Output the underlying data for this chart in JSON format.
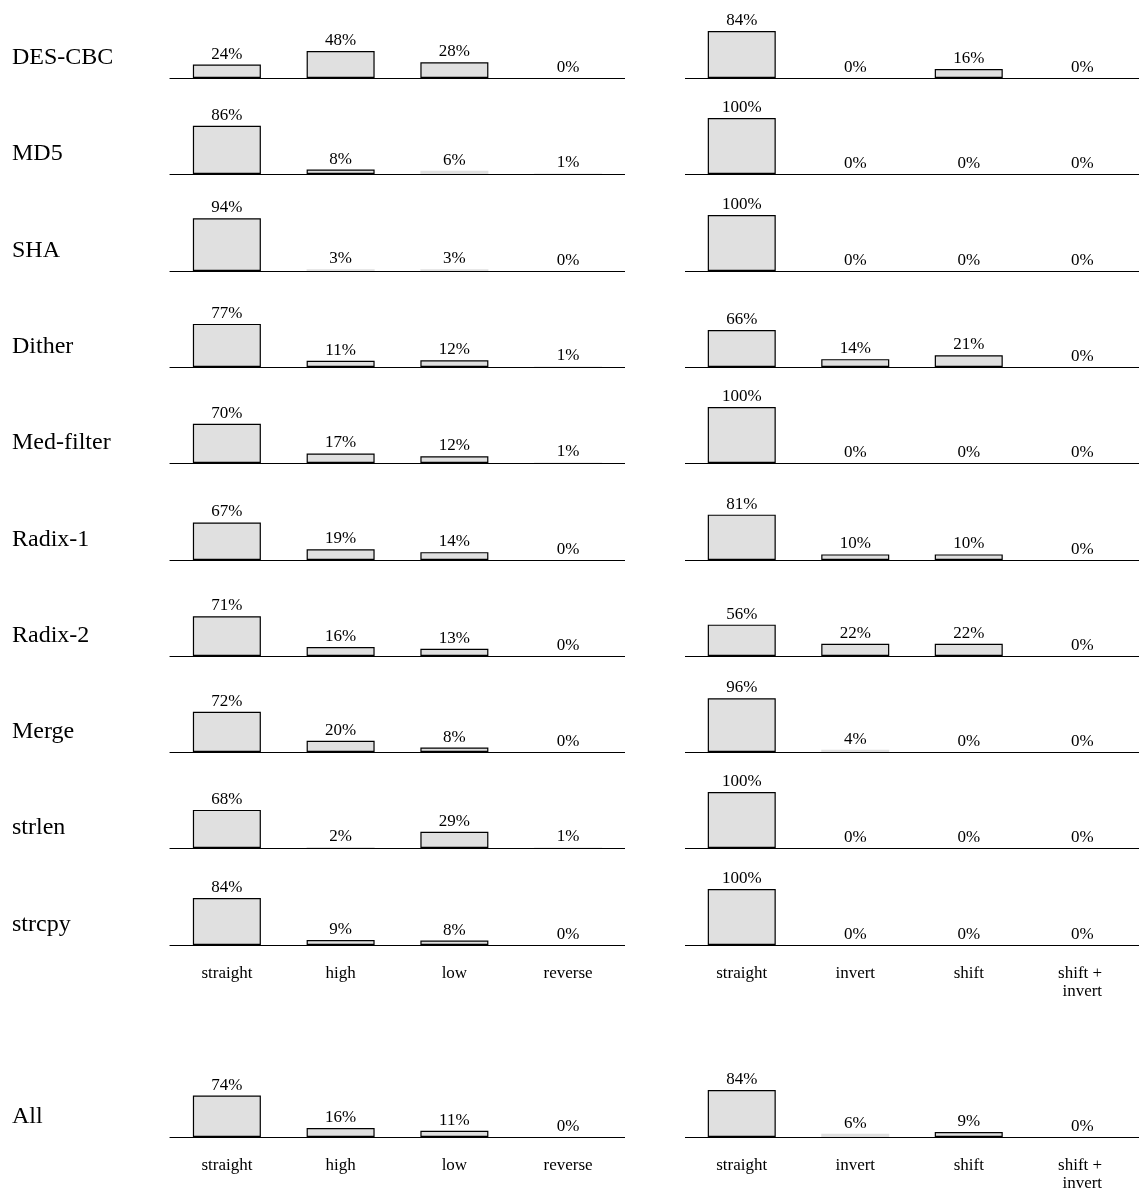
{
  "chart_data": [
    {
      "type": "bar",
      "ylabel": "DES-CBC",
      "categories": [
        "straight",
        "high",
        "low",
        "reverse"
      ],
      "values": [
        24,
        48,
        28,
        0
      ],
      "value_labels": [
        "24%",
        "48%",
        "28%",
        "0%"
      ],
      "color": "#e0e0e0",
      "tick_labels": false
    },
    {
      "type": "bar",
      "categories": [
        "straight",
        "invert",
        "shift",
        "shift + invert"
      ],
      "values": [
        84,
        0,
        16,
        0
      ],
      "value_labels": [
        "84%",
        "0%",
        "16%",
        "0%"
      ],
      "color": "#e0e0e0",
      "tick_labels": false
    },
    {
      "type": "bar",
      "ylabel": "MD5",
      "categories": [
        "straight",
        "high",
        "low",
        "reverse"
      ],
      "values": [
        86,
        8,
        6,
        1
      ],
      "value_labels": [
        "86%",
        "8%",
        "6%",
        "1%"
      ],
      "color": "#e0e0e0",
      "tick_labels": false
    },
    {
      "type": "bar",
      "categories": [
        "straight",
        "invert",
        "shift",
        "shift + invert"
      ],
      "values": [
        100,
        0,
        0,
        0
      ],
      "value_labels": [
        "100%",
        "0%",
        "0%",
        "0%"
      ],
      "color": "#e0e0e0",
      "tick_labels": false
    },
    {
      "type": "bar",
      "ylabel": "SHA",
      "categories": [
        "straight",
        "high",
        "low",
        "reverse"
      ],
      "values": [
        94,
        3,
        3,
        0
      ],
      "value_labels": [
        "94%",
        "3%",
        "3%",
        "0%"
      ],
      "color": "#e0e0e0",
      "tick_labels": false
    },
    {
      "type": "bar",
      "categories": [
        "straight",
        "invert",
        "shift",
        "shift + invert"
      ],
      "values": [
        100,
        0,
        0,
        0
      ],
      "value_labels": [
        "100%",
        "0%",
        "0%",
        "0%"
      ],
      "color": "#e0e0e0",
      "tick_labels": false
    },
    {
      "type": "bar",
      "ylabel": "Dither",
      "categories": [
        "straight",
        "high",
        "low",
        "reverse"
      ],
      "values": [
        77,
        11,
        12,
        1
      ],
      "value_labels": [
        "77%",
        "11%",
        "12%",
        "1%"
      ],
      "color": "#e0e0e0",
      "tick_labels": false
    },
    {
      "type": "bar",
      "categories": [
        "straight",
        "invert",
        "shift",
        "shift + invert"
      ],
      "values": [
        66,
        14,
        21,
        0
      ],
      "value_labels": [
        "66%",
        "14%",
        "21%",
        "0%"
      ],
      "color": "#e0e0e0",
      "tick_labels": false
    },
    {
      "type": "bar",
      "ylabel": "Med-filter",
      "categories": [
        "straight",
        "high",
        "low",
        "reverse"
      ],
      "values": [
        70,
        17,
        12,
        1
      ],
      "value_labels": [
        "70%",
        "17%",
        "12%",
        "1%"
      ],
      "color": "#e0e0e0",
      "tick_labels": false
    },
    {
      "type": "bar",
      "categories": [
        "straight",
        "invert",
        "shift",
        "shift + invert"
      ],
      "values": [
        100,
        0,
        0,
        0
      ],
      "value_labels": [
        "100%",
        "0%",
        "0%",
        "0%"
      ],
      "color": "#e0e0e0",
      "tick_labels": false
    },
    {
      "type": "bar",
      "ylabel": "Radix-1",
      "categories": [
        "straight",
        "high",
        "low",
        "reverse"
      ],
      "values": [
        67,
        19,
        14,
        0
      ],
      "value_labels": [
        "67%",
        "19%",
        "14%",
        "0%"
      ],
      "color": "#e0e0e0",
      "tick_labels": false
    },
    {
      "type": "bar",
      "categories": [
        "straight",
        "invert",
        "shift",
        "shift + invert"
      ],
      "values": [
        81,
        10,
        10,
        0
      ],
      "value_labels": [
        "81%",
        "10%",
        "10%",
        "0%"
      ],
      "color": "#e0e0e0",
      "tick_labels": false
    },
    {
      "type": "bar",
      "ylabel": "Radix-2",
      "categories": [
        "straight",
        "high",
        "low",
        "reverse"
      ],
      "values": [
        71,
        16,
        13,
        0
      ],
      "value_labels": [
        "71%",
        "16%",
        "13%",
        "0%"
      ],
      "color": "#e0e0e0",
      "tick_labels": false
    },
    {
      "type": "bar",
      "categories": [
        "straight",
        "invert",
        "shift",
        "shift + invert"
      ],
      "values": [
        56,
        22,
        22,
        0
      ],
      "value_labels": [
        "56%",
        "22%",
        "22%",
        "0%"
      ],
      "color": "#e0e0e0",
      "tick_labels": false
    },
    {
      "type": "bar",
      "ylabel": "Merge",
      "categories": [
        "straight",
        "high",
        "low",
        "reverse"
      ],
      "values": [
        72,
        20,
        8,
        0
      ],
      "value_labels": [
        "72%",
        "20%",
        "8%",
        "0%"
      ],
      "color": "#e0e0e0",
      "tick_labels": false
    },
    {
      "type": "bar",
      "categories": [
        "straight",
        "invert",
        "shift",
        "shift + invert"
      ],
      "values": [
        96,
        4,
        0,
        0
      ],
      "value_labels": [
        "96%",
        "4%",
        "0%",
        "0%"
      ],
      "color": "#e0e0e0",
      "tick_labels": false
    },
    {
      "type": "bar",
      "ylabel": "strlen",
      "categories": [
        "straight",
        "high",
        "low",
        "reverse"
      ],
      "values": [
        68,
        2,
        29,
        1
      ],
      "value_labels": [
        "68%",
        "2%",
        "29%",
        "1%"
      ],
      "color": "#e0e0e0",
      "tick_labels": false
    },
    {
      "type": "bar",
      "categories": [
        "straight",
        "invert",
        "shift",
        "shift + invert"
      ],
      "values": [
        100,
        0,
        0,
        0
      ],
      "value_labels": [
        "100%",
        "0%",
        "0%",
        "0%"
      ],
      "color": "#e0e0e0",
      "tick_labels": false
    },
    {
      "type": "bar",
      "ylabel": "strcpy",
      "categories": [
        "straight",
        "high",
        "low",
        "reverse"
      ],
      "values": [
        84,
        9,
        8,
        0
      ],
      "value_labels": [
        "84%",
        "9%",
        "8%",
        "0%"
      ],
      "color": "#e0e0e0",
      "tick_labels": "x"
    },
    {
      "type": "bar",
      "categories": [
        "straight",
        "invert",
        "shift",
        "shift + invert"
      ],
      "values": [
        100,
        0,
        0,
        0
      ],
      "value_labels": [
        "100%",
        "0%",
        "0%",
        "0%"
      ],
      "color": "#e0e0e0",
      "tick_labels": "x"
    },
    {
      "type": "bar",
      "ylabel": "All",
      "categories": [
        "straight",
        "high",
        "low",
        "reverse"
      ],
      "values": [
        74,
        16,
        11,
        0
      ],
      "value_labels": [
        "74%",
        "16%",
        "11%",
        "0%"
      ],
      "color": "#e0e0e0",
      "tick_labels": "x"
    },
    {
      "type": "bar",
      "categories": [
        "straight",
        "invert",
        "shift",
        "shift + invert"
      ],
      "values": [
        84,
        6,
        9,
        0
      ],
      "value_labels": [
        "84%",
        "6%",
        "9%",
        "0%"
      ],
      "color": "#e0e0e0",
      "tick_labels": "x"
    }
  ]
}
